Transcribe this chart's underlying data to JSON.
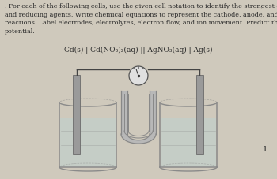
{
  "background_color": "#cfc9bc",
  "text_color": "#2a2a2a",
  "paragraph_text": ". For each of the following cells, use the given cell notation to identify the strongest oxidizing\nand reducing agents. Write chemical equations to represent the cathode, anode, and net cell\nreactions. Label electrodes, electrolytes, electron flow, and ion movement. Predict the cell\npotential.",
  "cell_notation": "Cd(s) | Cd(NO₃)₂(aq) || AgNO₃(aq) | Ag(s)",
  "page_number": "1",
  "para_fontsize": 5.8,
  "notation_fontsize": 6.5,
  "fig_width": 3.5,
  "fig_height": 2.27,
  "dpi": 100,
  "solution_color": "#c5cdc6",
  "beaker_line_color": "#8a8a8a",
  "electrode_color": "#9a9a9a",
  "electrode_edge_color": "#6a6a6a",
  "salt_bridge_fill": "#b8b8b8",
  "salt_bridge_line": "#888888",
  "wire_color": "#444444",
  "galv_face": "#e0e0e0",
  "galv_edge": "#555555"
}
